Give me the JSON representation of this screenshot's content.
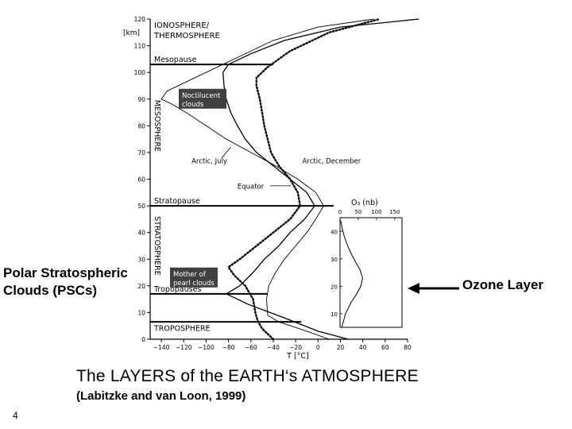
{
  "slide": {
    "title": "The LAYERS of the EARTH‘s ATMOSPHERE",
    "subtitle": "(Labitzke and van Loon, 1999)",
    "page_number": "4",
    "left_annotation": [
      "Polar Stratospheric",
      "Clouds (PSCs)"
    ],
    "right_annotation": "Ozone Layer"
  },
  "chart_data": [
    {
      "type": "line",
      "title": "",
      "xlabel": "T [°C]",
      "ylabel": "[km]",
      "xlim": [
        -150,
        80
      ],
      "ylim": [
        0,
        120
      ],
      "x_ticks": [
        -140,
        -120,
        -100,
        -80,
        -60,
        -40,
        -20,
        0,
        20,
        40,
        60,
        80
      ],
      "x_tick_labels": [
        "−140",
        "−120",
        "−100",
        "−80",
        "−60",
        "−40",
        "−20",
        "0",
        "20",
        "40",
        "60",
        "80"
      ],
      "y_ticks": [
        0,
        10,
        20,
        30,
        40,
        50,
        60,
        70,
        80,
        90,
        100,
        110,
        120
      ],
      "grid": false,
      "layers": [
        {
          "name": "IONOSPHERE/ THERMOSPHERE",
          "y": 115
        },
        {
          "name": "MESOSPHERE",
          "y": 80
        },
        {
          "name": "STRATOSPHERE",
          "y": 35
        },
        {
          "name": "TROPOSPHERE",
          "y": 4
        }
      ],
      "boundaries": [
        {
          "name": "Mesopause",
          "y": 103
        },
        {
          "name": "Stratopause",
          "y": 50
        },
        {
          "name": "Tropopauses",
          "y": 17
        },
        {
          "name": "",
          "y": 6.5
        }
      ],
      "cloud_labels": [
        {
          "text": [
            "Noctilucent",
            "clouds"
          ],
          "y": 90
        },
        {
          "text": [
            "Mother of",
            "pearl clouds"
          ],
          "y": 23
        }
      ],
      "series": [
        {
          "name": "Arctic, July",
          "style": "thin",
          "points": [
            [
              10,
              0
            ],
            [
              -10,
              3
            ],
            [
              -35,
              6.5
            ],
            [
              -45,
              9
            ],
            [
              -46,
              15
            ],
            [
              -44,
              20
            ],
            [
              -38,
              25
            ],
            [
              -30,
              30
            ],
            [
              -20,
              35
            ],
            [
              -10,
              40
            ],
            [
              -2,
              45
            ],
            [
              5,
              50
            ],
            [
              -2,
              55
            ],
            [
              -18,
              60
            ],
            [
              -38,
              65
            ],
            [
              -60,
              70
            ],
            [
              -82,
              75
            ],
            [
              -100,
              80
            ],
            [
              -118,
              85
            ],
            [
              -130,
              88
            ],
            [
              -140,
              90
            ],
            [
              -135,
              93
            ],
            [
              -115,
              97
            ],
            [
              -95,
              101
            ],
            [
              -70,
              106
            ],
            [
              -40,
              112
            ],
            [
              0,
              117
            ],
            [
              50,
              120
            ]
          ]
        },
        {
          "name": "Equator",
          "style": "solid",
          "points": [
            [
              27,
              0
            ],
            [
              0,
              3
            ],
            [
              -30,
              8
            ],
            [
              -62,
              13
            ],
            [
              -82,
              17
            ],
            [
              -70,
              20
            ],
            [
              -58,
              25
            ],
            [
              -48,
              30
            ],
            [
              -35,
              35
            ],
            [
              -25,
              40
            ],
            [
              -12,
              45
            ],
            [
              -3,
              50
            ],
            [
              -10,
              55
            ],
            [
              -25,
              60
            ],
            [
              -40,
              65
            ],
            [
              -55,
              70
            ],
            [
              -65,
              75
            ],
            [
              -72,
              80
            ],
            [
              -78,
              85
            ],
            [
              -82,
              90
            ],
            [
              -84,
              95
            ],
            [
              -85,
              100
            ],
            [
              -80,
              103
            ],
            [
              -60,
              107
            ],
            [
              -30,
              112
            ],
            [
              20,
              117
            ],
            [
              90,
              120
            ]
          ]
        },
        {
          "name": "Arctic, December",
          "style": "dotted",
          "points": [
            [
              -40,
              0
            ],
            [
              -50,
              4
            ],
            [
              -54,
              7
            ],
            [
              -56,
              10
            ],
            [
              -58,
              15
            ],
            [
              -65,
              20
            ],
            [
              -75,
              24
            ],
            [
              -80,
              27
            ],
            [
              -70,
              30
            ],
            [
              -55,
              35
            ],
            [
              -40,
              40
            ],
            [
              -25,
              45
            ],
            [
              -16,
              50
            ],
            [
              -18,
              55
            ],
            [
              -25,
              60
            ],
            [
              -35,
              65
            ],
            [
              -42,
              70
            ],
            [
              -45,
              75
            ],
            [
              -48,
              80
            ],
            [
              -50,
              85
            ],
            [
              -52,
              90
            ],
            [
              -55,
              95
            ],
            [
              -55,
              98
            ],
            [
              -45,
              102
            ],
            [
              -25,
              108
            ],
            [
              10,
              115
            ],
            [
              55,
              120
            ]
          ]
        }
      ],
      "annotations": [
        {
          "text": "Arctic, July",
          "series": "Arctic, July"
        },
        {
          "text": "Arctic, December",
          "series": "Arctic, December"
        },
        {
          "text": "Equator",
          "series": "Equator"
        }
      ]
    },
    {
      "type": "line",
      "title": "O₃ (nb)",
      "xlabel": "",
      "ylabel": "",
      "xlim": [
        0,
        170
      ],
      "ylim": [
        5,
        45
      ],
      "x_ticks": [
        0,
        50,
        100,
        150
      ],
      "y_ticks": [
        10,
        20,
        30,
        40
      ],
      "grid": false,
      "series": [
        {
          "name": "O₃",
          "points": [
            [
              5,
              5
            ],
            [
              15,
              10
            ],
            [
              30,
              14
            ],
            [
              45,
              17
            ],
            [
              57,
              20
            ],
            [
              62,
              23
            ],
            [
              55,
              26
            ],
            [
              42,
              29
            ],
            [
              30,
              32
            ],
            [
              20,
              35
            ],
            [
              12,
              38
            ],
            [
              6,
              41
            ],
            [
              2,
              44
            ]
          ]
        }
      ]
    }
  ]
}
